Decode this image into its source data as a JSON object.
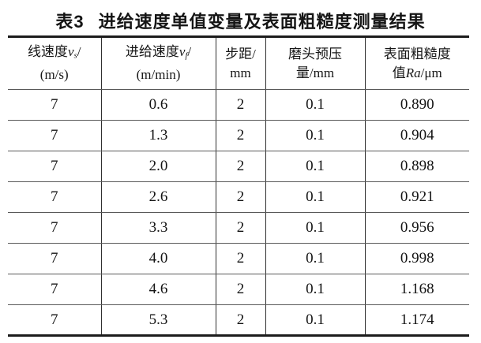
{
  "title": {
    "prefix": "表3",
    "text": "进给速度单值变量及表面粗糙度测量结果"
  },
  "header": {
    "line_speed": {
      "name": "线速度",
      "var": "v",
      "sub": "s",
      "slash": "/",
      "unit": "(m/s)"
    },
    "feed_speed": {
      "name": "进给速度",
      "var": "v",
      "sub": "f",
      "slash": "/",
      "unit": "(m/min)"
    },
    "step": {
      "line1": "步距/",
      "line2": "mm"
    },
    "preload": {
      "line1": "磨头预压",
      "line2": "量/mm"
    },
    "roughness": {
      "line1": "表面粗糙度",
      "pre": "值",
      "var": "Ra",
      "after": "/μm"
    }
  },
  "rows": [
    [
      "7",
      "0.6",
      "2",
      "0.1",
      "0.890"
    ],
    [
      "7",
      "1.3",
      "2",
      "0.1",
      "0.904"
    ],
    [
      "7",
      "2.0",
      "2",
      "0.1",
      "0.898"
    ],
    [
      "7",
      "2.6",
      "2",
      "0.1",
      "0.921"
    ],
    [
      "7",
      "3.3",
      "2",
      "0.1",
      "0.956"
    ],
    [
      "7",
      "4.0",
      "2",
      "0.1",
      "0.998"
    ],
    [
      "7",
      "4.6",
      "2",
      "0.1",
      "1.168"
    ],
    [
      "7",
      "5.3",
      "2",
      "0.1",
      "1.174"
    ]
  ],
  "colors": {
    "border_heavy": "#1c1c1c",
    "border_light": "#595959",
    "text": "#111111",
    "background": "#ffffff"
  }
}
